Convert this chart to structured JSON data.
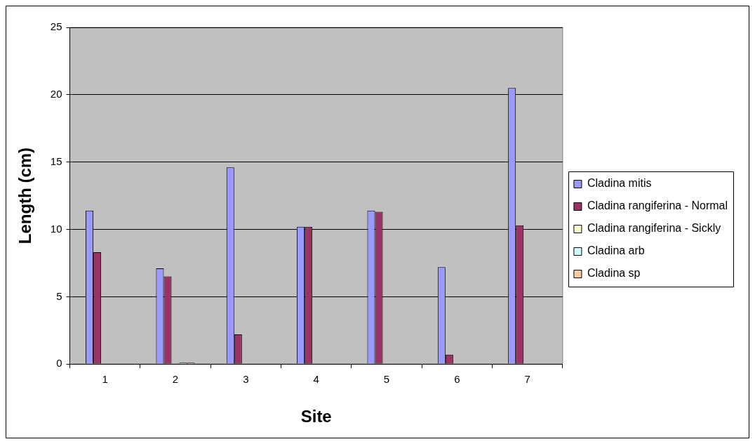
{
  "chart_data": {
    "type": "bar",
    "xlabel": "Site",
    "ylabel": "Length (cm)",
    "categories": [
      "1",
      "2",
      "3",
      "4",
      "5",
      "6",
      "7"
    ],
    "series": [
      {
        "name": "Cladina mitis",
        "color": "#9999ff",
        "values": [
          11.4,
          7.1,
          14.6,
          10.2,
          11.4,
          7.2,
          20.5
        ]
      },
      {
        "name": "Cladina rangiferina - Normal",
        "color": "#993366",
        "values": [
          8.3,
          6.5,
          2.2,
          10.2,
          11.3,
          0.7,
          10.3
        ]
      },
      {
        "name": "Cladina rangiferina - Sickly",
        "color": "#ffffcc",
        "values": [
          null,
          null,
          null,
          null,
          null,
          null,
          null
        ]
      },
      {
        "name": "Cladina arb",
        "color": "#ccffff",
        "values": [
          null,
          0.1,
          null,
          null,
          null,
          null,
          null
        ]
      },
      {
        "name": "Cladina sp",
        "color": "#ffcc99",
        "values": [
          null,
          0.1,
          null,
          null,
          null,
          null,
          null
        ]
      }
    ],
    "ylim": [
      0,
      25
    ],
    "yticks": [
      0,
      5,
      10,
      15,
      20,
      25
    ],
    "grid": "y",
    "legend": "right"
  }
}
